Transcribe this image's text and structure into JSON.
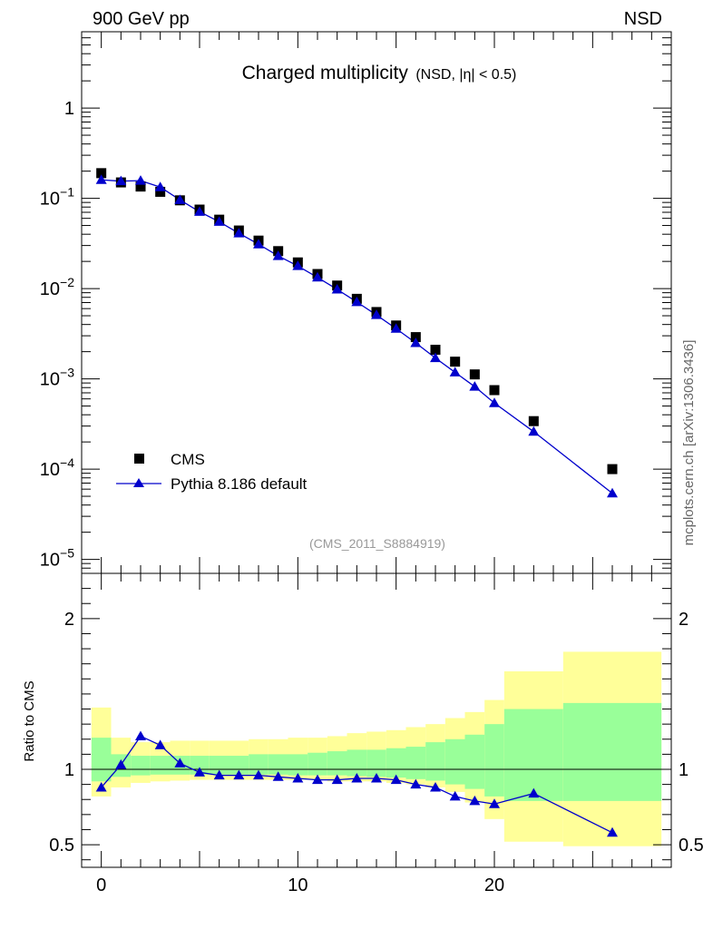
{
  "header": {
    "left_label": "900 GeV pp",
    "right_label": "NSD"
  },
  "side_label": "mcplots.cern.ch [arXiv:1306.3436]",
  "watermark": "(CMS_2011_S8884919)",
  "title": {
    "main": "Charged multiplicity",
    "sub": "(NSD, |η| < 0.5)"
  },
  "legend": [
    {
      "label": "CMS",
      "marker": "square",
      "color": "#000000"
    },
    {
      "label": "Pythia 8.186 default",
      "marker": "triangle",
      "color": "#0000cc"
    }
  ],
  "ratio_ylabel": "Ratio to CMS",
  "colors": {
    "mc": "#0000cc",
    "data": "#000000",
    "band_outer": "#ffff99",
    "band_inner": "#99ff99"
  },
  "chart_data": [
    {
      "type": "scatter",
      "title": "Charged multiplicity",
      "yscale": "log",
      "xlim": [
        -1,
        29
      ],
      "ylim": [
        7e-06,
        7
      ],
      "yticks": [
        {
          "value": 1e-05,
          "label": "10^-5"
        },
        {
          "value": 0.0001,
          "label": "10^-4"
        },
        {
          "value": 0.001,
          "label": "10^-3"
        },
        {
          "value": 0.01,
          "label": "10^-2"
        },
        {
          "value": 0.1,
          "label": "10^-1"
        },
        {
          "value": 1,
          "label": "1"
        }
      ],
      "series": [
        {
          "name": "CMS",
          "x": [
            0,
            1,
            2,
            3,
            4,
            5,
            6,
            7,
            8,
            9,
            10,
            11,
            12,
            13,
            14,
            15,
            16,
            17,
            18,
            19,
            20,
            22,
            26
          ],
          "y": [
            0.19,
            0.15,
            0.135,
            0.118,
            0.095,
            0.075,
            0.058,
            0.044,
            0.034,
            0.026,
            0.0195,
            0.0145,
            0.0108,
            0.0077,
            0.0055,
            0.0039,
            0.0029,
            0.0021,
            0.00155,
            0.00112,
            0.00075,
            0.00034,
            0.0001
          ]
        },
        {
          "name": "Pythia 8.186 default",
          "x": [
            0,
            1,
            2,
            3,
            4,
            5,
            6,
            7,
            8,
            9,
            10,
            11,
            12,
            13,
            14,
            15,
            16,
            17,
            18,
            19,
            20,
            22,
            26
          ],
          "y": [
            0.16,
            0.155,
            0.157,
            0.133,
            0.096,
            0.071,
            0.055,
            0.041,
            0.031,
            0.023,
            0.0178,
            0.0133,
            0.0098,
            0.0071,
            0.0051,
            0.0036,
            0.0025,
            0.0017,
            0.00118,
            0.00082,
            0.00054,
            0.00026,
            5.4e-05
          ]
        }
      ]
    },
    {
      "type": "line",
      "ylabel": "Ratio to CMS",
      "xlim": [
        -1,
        29
      ],
      "ylim": [
        0.35,
        2.3
      ],
      "xticks": [
        0,
        10,
        20
      ],
      "yticks": [
        0.5,
        1,
        2
      ],
      "bands": {
        "bins": [
          [
            -0.5,
            0.5
          ],
          [
            0.5,
            1.5
          ],
          [
            1.5,
            2.5
          ],
          [
            2.5,
            3.5
          ],
          [
            3.5,
            4.5
          ],
          [
            4.5,
            5.5
          ],
          [
            5.5,
            6.5
          ],
          [
            6.5,
            7.5
          ],
          [
            7.5,
            8.5
          ],
          [
            8.5,
            9.5
          ],
          [
            9.5,
            10.5
          ],
          [
            10.5,
            11.5
          ],
          [
            11.5,
            12.5
          ],
          [
            12.5,
            13.5
          ],
          [
            13.5,
            14.5
          ],
          [
            14.5,
            15.5
          ],
          [
            15.5,
            16.5
          ],
          [
            16.5,
            17.5
          ],
          [
            17.5,
            18.5
          ],
          [
            18.5,
            19.5
          ],
          [
            19.5,
            20.5
          ],
          [
            20.5,
            23.5
          ],
          [
            23.5,
            28.5
          ]
        ],
        "outer_lo": [
          0.82,
          0.88,
          0.91,
          0.92,
          0.925,
          0.93,
          0.93,
          0.93,
          0.93,
          0.93,
          0.93,
          0.93,
          0.92,
          0.92,
          0.92,
          0.91,
          0.9,
          0.88,
          0.85,
          0.78,
          0.67,
          0.52,
          0.49
        ],
        "outer_hi": [
          1.41,
          1.21,
          1.18,
          1.18,
          1.19,
          1.19,
          1.19,
          1.19,
          1.2,
          1.2,
          1.21,
          1.21,
          1.22,
          1.24,
          1.25,
          1.26,
          1.28,
          1.3,
          1.34,
          1.38,
          1.46,
          1.65,
          1.78
        ],
        "inner_lo": [
          0.92,
          0.95,
          0.96,
          0.965,
          0.965,
          0.965,
          0.965,
          0.965,
          0.965,
          0.965,
          0.96,
          0.96,
          0.96,
          0.955,
          0.95,
          0.945,
          0.935,
          0.925,
          0.9,
          0.87,
          0.82,
          0.79,
          0.79
        ],
        "inner_hi": [
          1.21,
          1.1,
          1.09,
          1.09,
          1.09,
          1.09,
          1.09,
          1.09,
          1.1,
          1.1,
          1.1,
          1.11,
          1.12,
          1.13,
          1.13,
          1.14,
          1.15,
          1.18,
          1.2,
          1.23,
          1.3,
          1.4,
          1.44
        ]
      },
      "series": [
        {
          "name": "Pythia 8.186 default",
          "x": [
            0,
            1,
            2,
            3,
            4,
            5,
            6,
            7,
            8,
            9,
            10,
            11,
            12,
            13,
            14,
            15,
            16,
            17,
            18,
            19,
            20,
            22,
            26
          ],
          "y": [
            0.88,
            1.03,
            1.22,
            1.16,
            1.04,
            0.98,
            0.96,
            0.96,
            0.96,
            0.95,
            0.94,
            0.93,
            0.93,
            0.94,
            0.94,
            0.93,
            0.9,
            0.88,
            0.82,
            0.79,
            0.77,
            0.84,
            0.58
          ]
        }
      ]
    }
  ]
}
